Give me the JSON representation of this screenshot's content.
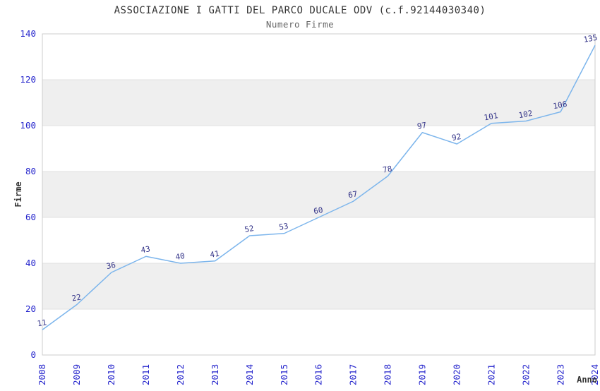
{
  "chart_data": {
    "type": "line",
    "title": "ASSOCIAZIONE I GATTI DEL PARCO DUCALE ODV (c.f.92144030340)",
    "subtitle": "Numero Firme",
    "xlabel": "Anno",
    "ylabel": "Firme",
    "categories": [
      "2008",
      "2009",
      "2010",
      "2011",
      "2012",
      "2013",
      "2014",
      "2015",
      "2016",
      "2017",
      "2018",
      "2019",
      "2020",
      "2021",
      "2022",
      "2023",
      "2024"
    ],
    "values": [
      11,
      22,
      36,
      43,
      40,
      41,
      52,
      53,
      60,
      67,
      78,
      97,
      92,
      101,
      102,
      106,
      135
    ],
    "ylim": [
      0,
      140
    ],
    "ytick_interval": 20,
    "yticks": [
      0,
      20,
      40,
      60,
      80,
      100,
      120,
      140
    ],
    "grid": true,
    "background_bands": true,
    "legend": "none",
    "markers": "none",
    "data_labels": true,
    "x_tick_rotation": -90,
    "data_label_rotation": -10,
    "colors": {
      "line": "#7cb5ec",
      "tick_label": "#2424cc",
      "data_label": "#333388",
      "band_fill": "#efefef",
      "gridline": "#e0e0e0",
      "plot_border": "#cccccc",
      "title": "#333333",
      "subtitle": "#666666",
      "axis_title": "#333333",
      "background": "#ffffff"
    }
  }
}
